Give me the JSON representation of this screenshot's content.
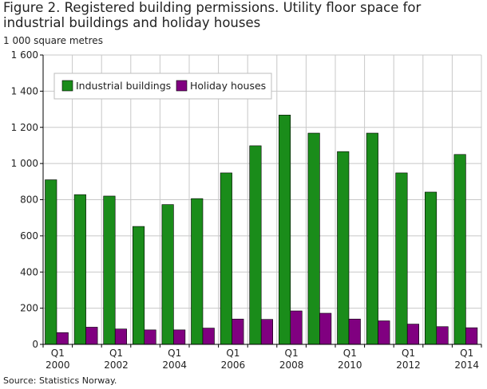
{
  "title": "Figure 2. Registered building permissions. Utility floor space for industrial buildings and holiday houses",
  "unit_label": "1 000 square metres",
  "source": "Source: Statistics Norway.",
  "colors": {
    "industrial": "#1a8c1a",
    "holiday": "#800080",
    "grid": "#c8c8c8",
    "axis": "#000000"
  },
  "chart_data": {
    "type": "bar",
    "title": "Figure 2. Registered building permissions. Utility floor space for industrial buildings and holiday houses",
    "ylabel": "1 000 square metres",
    "xlabel": "",
    "ylim": [
      0,
      1600
    ],
    "yticks": [
      0,
      200,
      400,
      600,
      800,
      1000,
      1200,
      1400,
      1600
    ],
    "ytick_labels": [
      "0",
      "200",
      "400",
      "600",
      "800",
      "1 000",
      "1 200",
      "1 400",
      "1 600"
    ],
    "categories": [
      "Q1 2000",
      "Q1 2001",
      "Q1 2002",
      "Q1 2003",
      "Q1 2004",
      "Q1 2005",
      "Q1 2006",
      "Q1 2007",
      "Q1 2008",
      "Q1 2009",
      "Q1 2010",
      "Q1 2011",
      "Q1 2012",
      "Q1 2013",
      "Q1 2014"
    ],
    "xtick_labels": [
      {
        "index": 0,
        "q": "Q1",
        "year": "2000"
      },
      {
        "index": 2,
        "q": "Q1",
        "year": "2002"
      },
      {
        "index": 4,
        "q": "Q1",
        "year": "2004"
      },
      {
        "index": 6,
        "q": "Q1",
        "year": "2006"
      },
      {
        "index": 8,
        "q": "Q1",
        "year": "2008"
      },
      {
        "index": 10,
        "q": "Q1",
        "year": "2010"
      },
      {
        "index": 12,
        "q": "Q1",
        "year": "2012"
      },
      {
        "index": 14,
        "q": "Q1",
        "year": "2014"
      }
    ],
    "series": [
      {
        "name": "Industrial buildings",
        "values": [
          910,
          828,
          820,
          652,
          773,
          806,
          948,
          1098,
          1268,
          1168,
          1066,
          1168,
          948,
          842,
          1050
        ]
      },
      {
        "name": "Holiday houses",
        "values": [
          65,
          95,
          85,
          80,
          80,
          90,
          140,
          138,
          185,
          172,
          140,
          130,
          112,
          98,
          92
        ]
      }
    ],
    "legend": {
      "position": "top-left"
    },
    "grid": true
  }
}
